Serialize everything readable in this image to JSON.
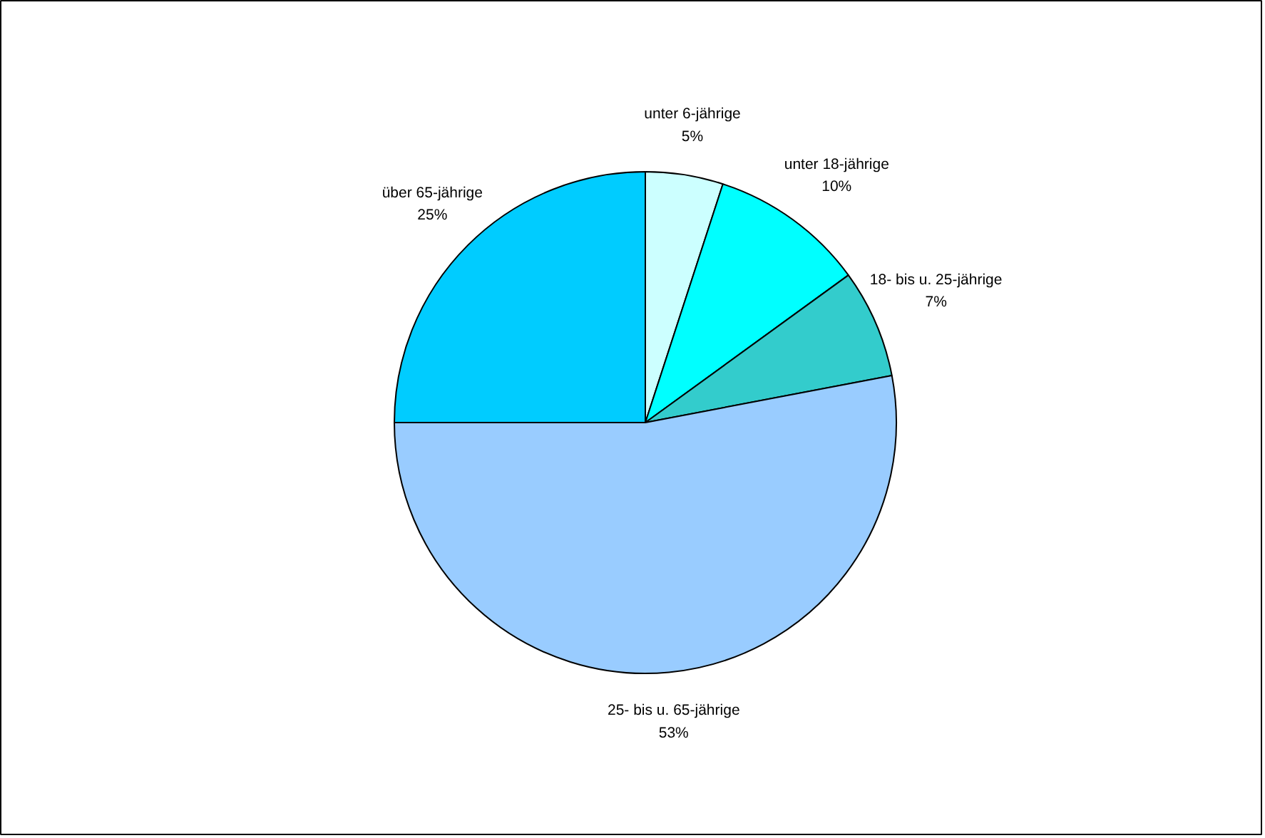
{
  "chart_data": {
    "type": "pie",
    "categories": [
      "unter 6-jährige",
      "unter 18-jährige",
      "18- bis u. 25-jährige",
      "25- bis u. 65-jährige",
      "über 65-jährige"
    ],
    "values": [
      5,
      10,
      7,
      53,
      25
    ],
    "value_labels": [
      "5%",
      "10%",
      "7%",
      "53%",
      "25%"
    ],
    "colors": [
      "#ccffff",
      "#00ffff",
      "#33cccc",
      "#99ccff",
      "#00ccff"
    ]
  }
}
